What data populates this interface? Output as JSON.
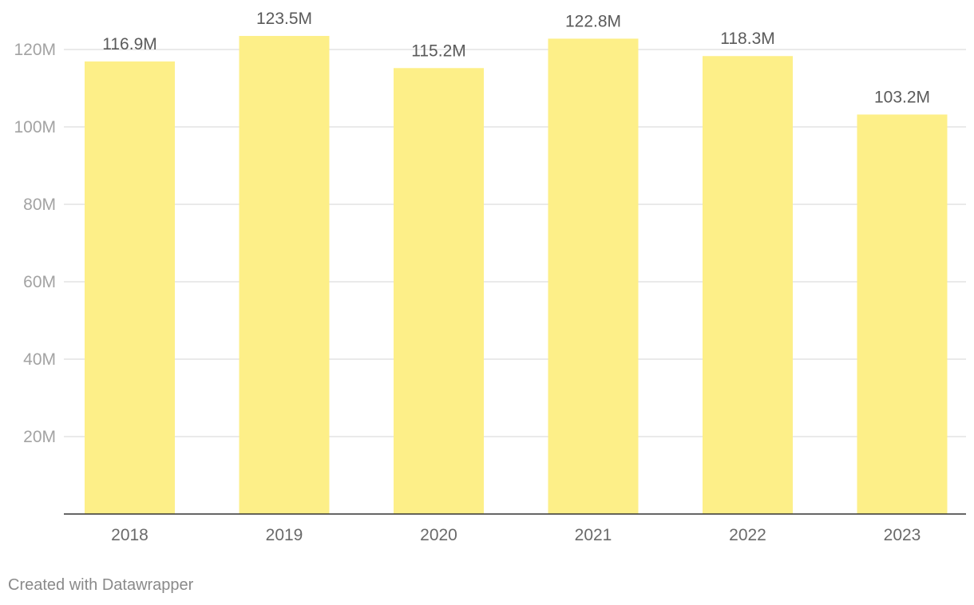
{
  "chart_data": {
    "type": "bar",
    "title": "",
    "xlabel": "",
    "ylabel": "",
    "categories": [
      "2018",
      "2019",
      "2020",
      "2021",
      "2022",
      "2023"
    ],
    "values": [
      116.9,
      123.5,
      115.2,
      122.8,
      118.3,
      103.2
    ],
    "value_labels": [
      "116.9M",
      "123.5M",
      "115.2M",
      "122.8M",
      "118.3M",
      "103.2M"
    ],
    "ylim": [
      0,
      120
    ],
    "yticks": [
      20,
      40,
      60,
      80,
      100,
      120
    ],
    "ytick_labels": [
      "20M",
      "40M",
      "60M",
      "80M",
      "100M",
      "120M"
    ],
    "grid": true,
    "legend": "none",
    "bar_color": "#fdef88"
  },
  "footer": {
    "credit": "Created with Datawrapper"
  }
}
